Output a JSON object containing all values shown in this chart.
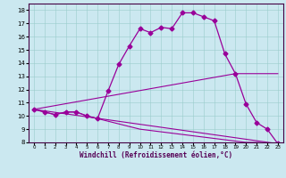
{
  "xlabel": "Windchill (Refroidissement éolien,°C)",
  "x_ticks": [
    0,
    1,
    2,
    3,
    4,
    5,
    6,
    7,
    8,
    9,
    10,
    11,
    12,
    13,
    14,
    15,
    16,
    17,
    18,
    19,
    20,
    21,
    22,
    23
  ],
  "ylim": [
    8,
    18.5
  ],
  "yticks": [
    8,
    9,
    10,
    11,
    12,
    13,
    14,
    15,
    16,
    17,
    18
  ],
  "xlim": [
    -0.5,
    23.5
  ],
  "bg_color": "#cbe8f0",
  "line_color": "#990099",
  "lines": [
    {
      "x": [
        0,
        1,
        2,
        3,
        4,
        5,
        6,
        7,
        8,
        9,
        10,
        11,
        12,
        13,
        14,
        15,
        16,
        17,
        18,
        19,
        20,
        21,
        22,
        23
      ],
      "y": [
        10.5,
        10.3,
        10.1,
        10.3,
        10.3,
        10.0,
        9.8,
        11.9,
        13.9,
        15.3,
        16.6,
        16.3,
        16.7,
        16.6,
        17.8,
        17.8,
        17.5,
        17.2,
        14.7,
        13.2,
        10.9,
        9.5,
        9.0,
        7.9
      ],
      "marker": true
    },
    {
      "x": [
        0,
        1,
        2,
        3,
        4,
        5,
        6,
        7,
        8,
        9,
        10,
        11,
        12,
        13,
        14,
        15,
        16,
        17,
        18,
        19,
        20,
        21,
        22,
        23
      ],
      "y": [
        10.5,
        10.3,
        10.1,
        10.3,
        10.3,
        10.0,
        9.8,
        9.6,
        9.4,
        9.2,
        9.0,
        8.9,
        8.8,
        8.7,
        8.6,
        8.5,
        8.4,
        8.3,
        8.2,
        8.1,
        8.0,
        8.0,
        7.95,
        7.9
      ],
      "marker": false
    },
    {
      "x": [
        0,
        23
      ],
      "y": [
        10.5,
        7.9
      ],
      "marker": false
    },
    {
      "x": [
        0,
        19,
        23
      ],
      "y": [
        10.5,
        13.2,
        13.2
      ],
      "marker": false
    }
  ]
}
